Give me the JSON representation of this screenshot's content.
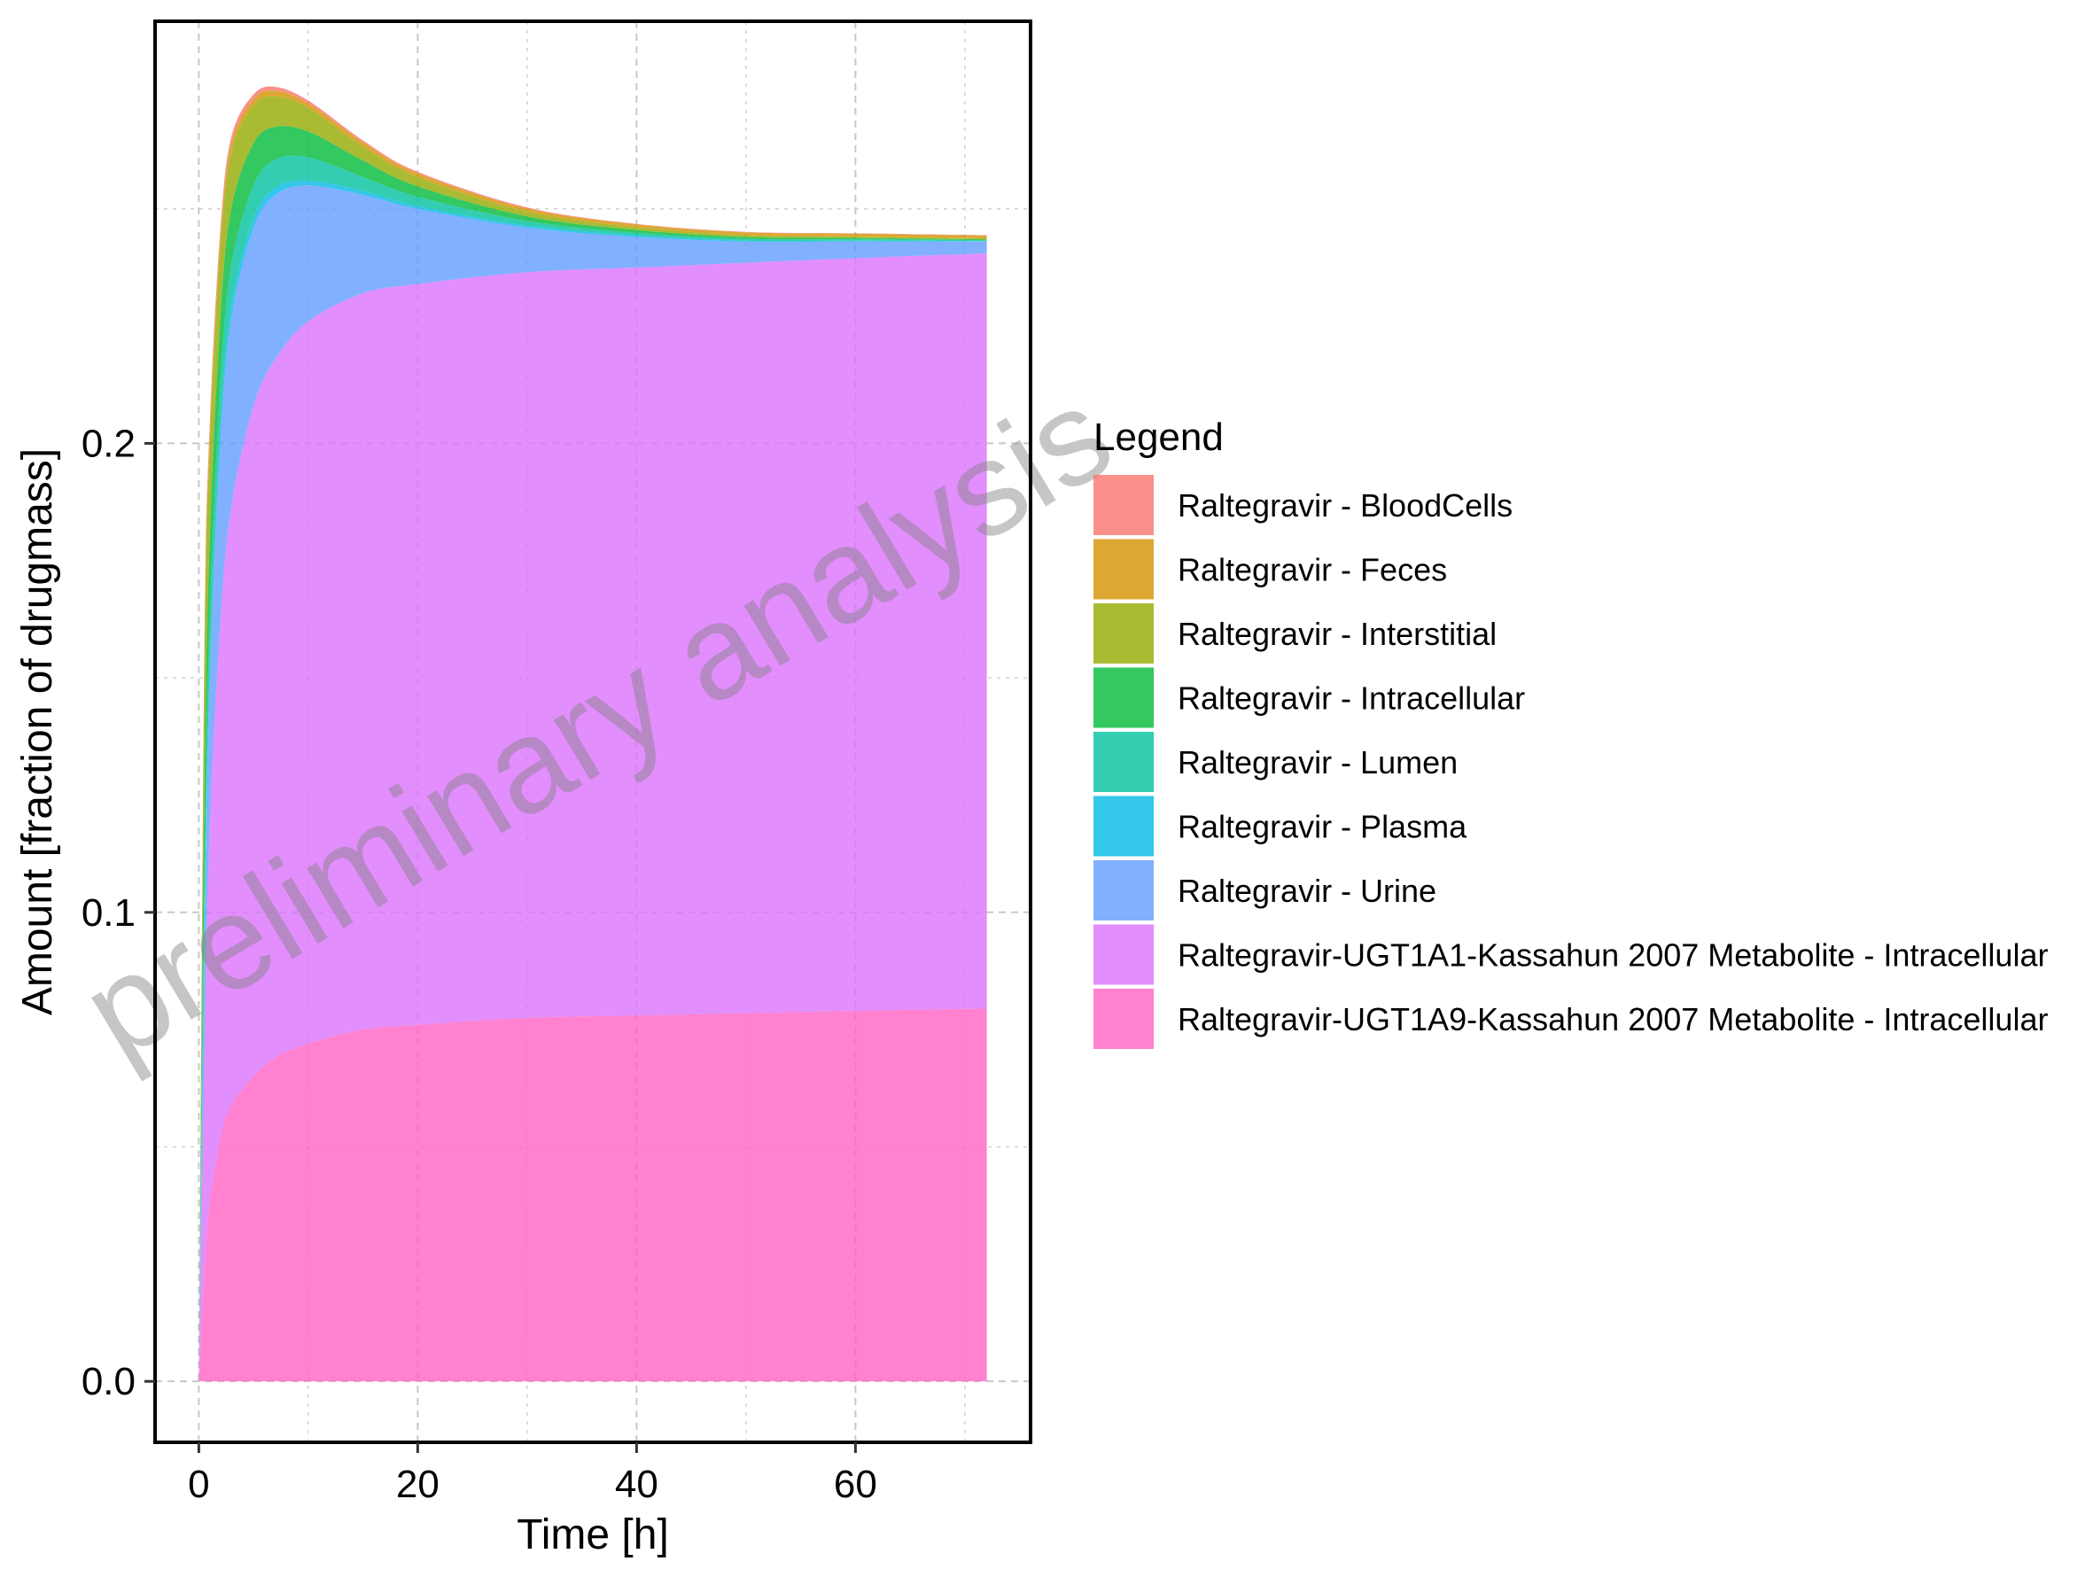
{
  "chart_data": {
    "type": "area",
    "stacked": true,
    "xlabel": "Time [h]",
    "ylabel": "Amount [fraction of drugmass]",
    "xlim": [
      -4,
      76
    ],
    "ylim": [
      -0.013,
      0.29
    ],
    "xticks": [
      0,
      20,
      40,
      60
    ],
    "xtick_labels": [
      "0",
      "20",
      "40",
      "60"
    ],
    "yticks": [
      0.0,
      0.1,
      0.2
    ],
    "ytick_labels": [
      "0.0",
      "0.1",
      "0.2"
    ],
    "grid": true,
    "legend": {
      "title": "Legend",
      "position": "right"
    },
    "watermark": "preliminary analysis",
    "x": [
      0,
      0.5,
      1,
      2,
      3,
      5,
      7,
      10,
      15,
      20,
      30,
      40,
      50,
      60,
      72
    ],
    "series": [
      {
        "name": "Raltegravir-UGT1A9-Kassahun 2007 Metabolite - Intracellular",
        "color": "#FF61C3",
        "values": [
          0,
          0.022,
          0.038,
          0.052,
          0.059,
          0.065,
          0.069,
          0.072,
          0.075,
          0.076,
          0.0775,
          0.078,
          0.0785,
          0.079,
          0.0795
        ]
      },
      {
        "name": "Raltegravir-UGT1A1-Kassahun 2007 Metabolite - Intracellular",
        "color": "#DB72FB",
        "values": [
          0,
          0.045,
          0.08,
          0.111,
          0.128,
          0.143,
          0.149,
          0.154,
          0.157,
          0.158,
          0.159,
          0.1595,
          0.16,
          0.1605,
          0.161
        ]
      },
      {
        "name": "Raltegravir - Urine",
        "color": "#619CFF",
        "values": [
          0,
          0.022,
          0.03,
          0.038,
          0.04,
          0.038,
          0.035,
          0.029,
          0.021,
          0.016,
          0.0095,
          0.0065,
          0.0045,
          0.0035,
          0.0025
        ]
      },
      {
        "name": "Raltegravir - Plasma",
        "color": "#00B9E3",
        "values": [
          0,
          0.005,
          0.004,
          0.003,
          0.0025,
          0.002,
          0.0015,
          0.001,
          0.0008,
          0.0006,
          0.0004,
          0.0003,
          0.0002,
          0.0002,
          0.0001
        ]
      },
      {
        "name": "Raltegravir - Lumen",
        "color": "#00C19F",
        "values": [
          0,
          0.012,
          0.011,
          0.01,
          0.009,
          0.007,
          0.006,
          0.005,
          0.003,
          0.002,
          0.001,
          0.0006,
          0.0004,
          0.0003,
          0.0002
        ]
      },
      {
        "name": "Raltegravir - Intracellular",
        "color": "#00BA38",
        "values": [
          0,
          0.02,
          0.017,
          0.014,
          0.012,
          0.009,
          0.007,
          0.0055,
          0.0035,
          0.0022,
          0.001,
          0.0006,
          0.0004,
          0.0003,
          0.0002
        ]
      },
      {
        "name": "Raltegravir - Interstitial",
        "color": "#93AA00",
        "values": [
          0,
          0.025,
          0.02,
          0.015,
          0.012,
          0.008,
          0.0065,
          0.005,
          0.003,
          0.002,
          0.001,
          0.0006,
          0.0004,
          0.0003,
          0.0002
        ]
      },
      {
        "name": "Raltegravir - Feces",
        "color": "#D39200",
        "values": [
          0,
          0.002,
          0.002,
          0.0018,
          0.0016,
          0.0014,
          0.0012,
          0.001,
          0.0009,
          0.0008,
          0.0007,
          0.0006,
          0.0006,
          0.0006,
          0.0006
        ]
      },
      {
        "name": "Raltegravir - BloodCells",
        "color": "#F8766D",
        "values": [
          0,
          0.003,
          0.0025,
          0.002,
          0.0015,
          0.001,
          0.0008,
          0.0006,
          0.0004,
          0.0003,
          0.0002,
          0.0001,
          0.0001,
          0.0001,
          0.0001
        ]
      }
    ],
    "legend_entries": [
      {
        "name": "Raltegravir - BloodCells",
        "color": "#F8766D"
      },
      {
        "name": "Raltegravir - Feces",
        "color": "#D39200"
      },
      {
        "name": "Raltegravir - Interstitial",
        "color": "#93AA00"
      },
      {
        "name": "Raltegravir - Intracellular",
        "color": "#00BA38"
      },
      {
        "name": "Raltegravir - Lumen",
        "color": "#00C19F"
      },
      {
        "name": "Raltegravir - Plasma",
        "color": "#00B9E3"
      },
      {
        "name": "Raltegravir - Urine",
        "color": "#619CFF"
      },
      {
        "name": "Raltegravir-UGT1A1-Kassahun 2007 Metabolite - Intracellular",
        "color": "#DB72FB"
      },
      {
        "name": "Raltegravir-UGT1A9-Kassahun 2007 Metabolite - Intracellular",
        "color": "#FF61C3"
      }
    ]
  }
}
